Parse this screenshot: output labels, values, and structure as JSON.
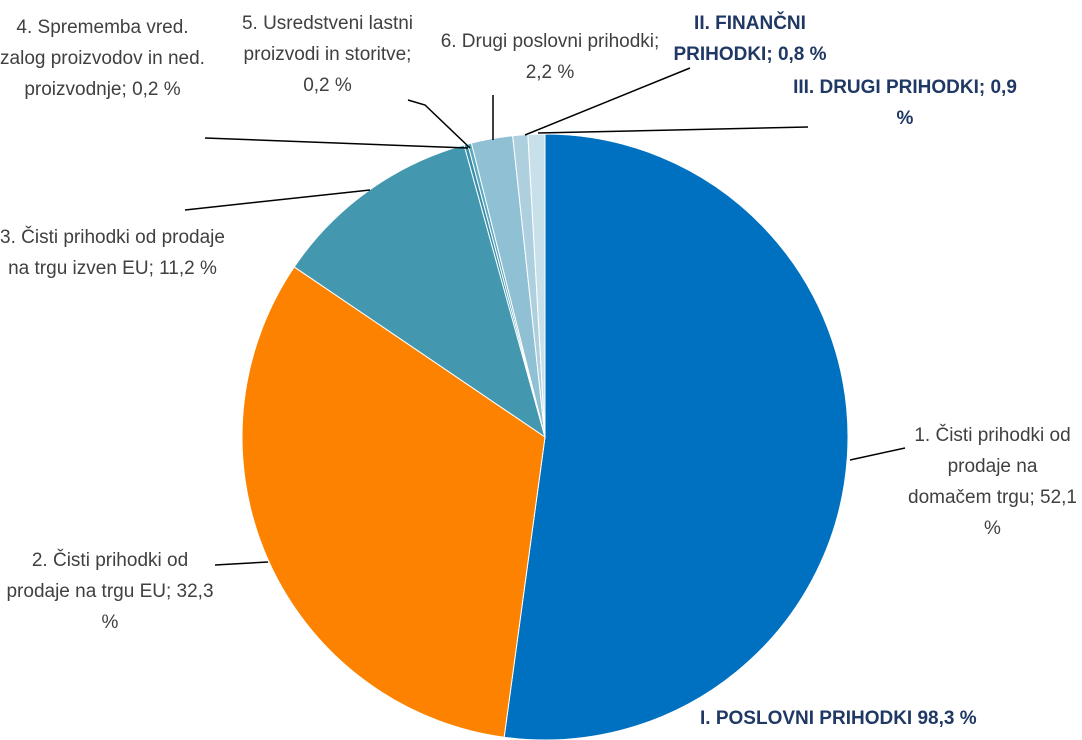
{
  "chart_data": {
    "type": "pie",
    "categories": [
      "1. Čisti prihodki od prodaje na domačem trgu;",
      "2. Čisti prihodki od prodaje na trgu EU;",
      "3. Čisti prihodki od prodaje na trgu izven EU;",
      "4. Sprememba vred. zalog proizvodov in ned. proizvodnje;",
      "5. Usredstveni lastni proizvodi in storitve;",
      "6. Drugi poslovni prihodki;",
      "II. FINANČNI PRIHODKI;",
      "III. DRUGI PRIHODKI;"
    ],
    "values": [
      52.1,
      32.3,
      11.2,
      0.2,
      0.2,
      2.2,
      0.8,
      0.9
    ],
    "value_labels": [
      "52,1 %",
      "32,3 %",
      "11,2 %",
      "0,2 %",
      "0,2 %",
      "2,2 %",
      "0,8 %",
      "0,9 %"
    ],
    "colors": [
      "#0070c0",
      "#fc8200",
      "#4398b0",
      "#3a8fa8",
      "#5aa8c0",
      "#8fc0d4",
      "#aed0de",
      "#c8e0ea"
    ],
    "annotations": [
      "I. POSLOVNI PRIHODKI 98,3 %"
    ]
  }
}
